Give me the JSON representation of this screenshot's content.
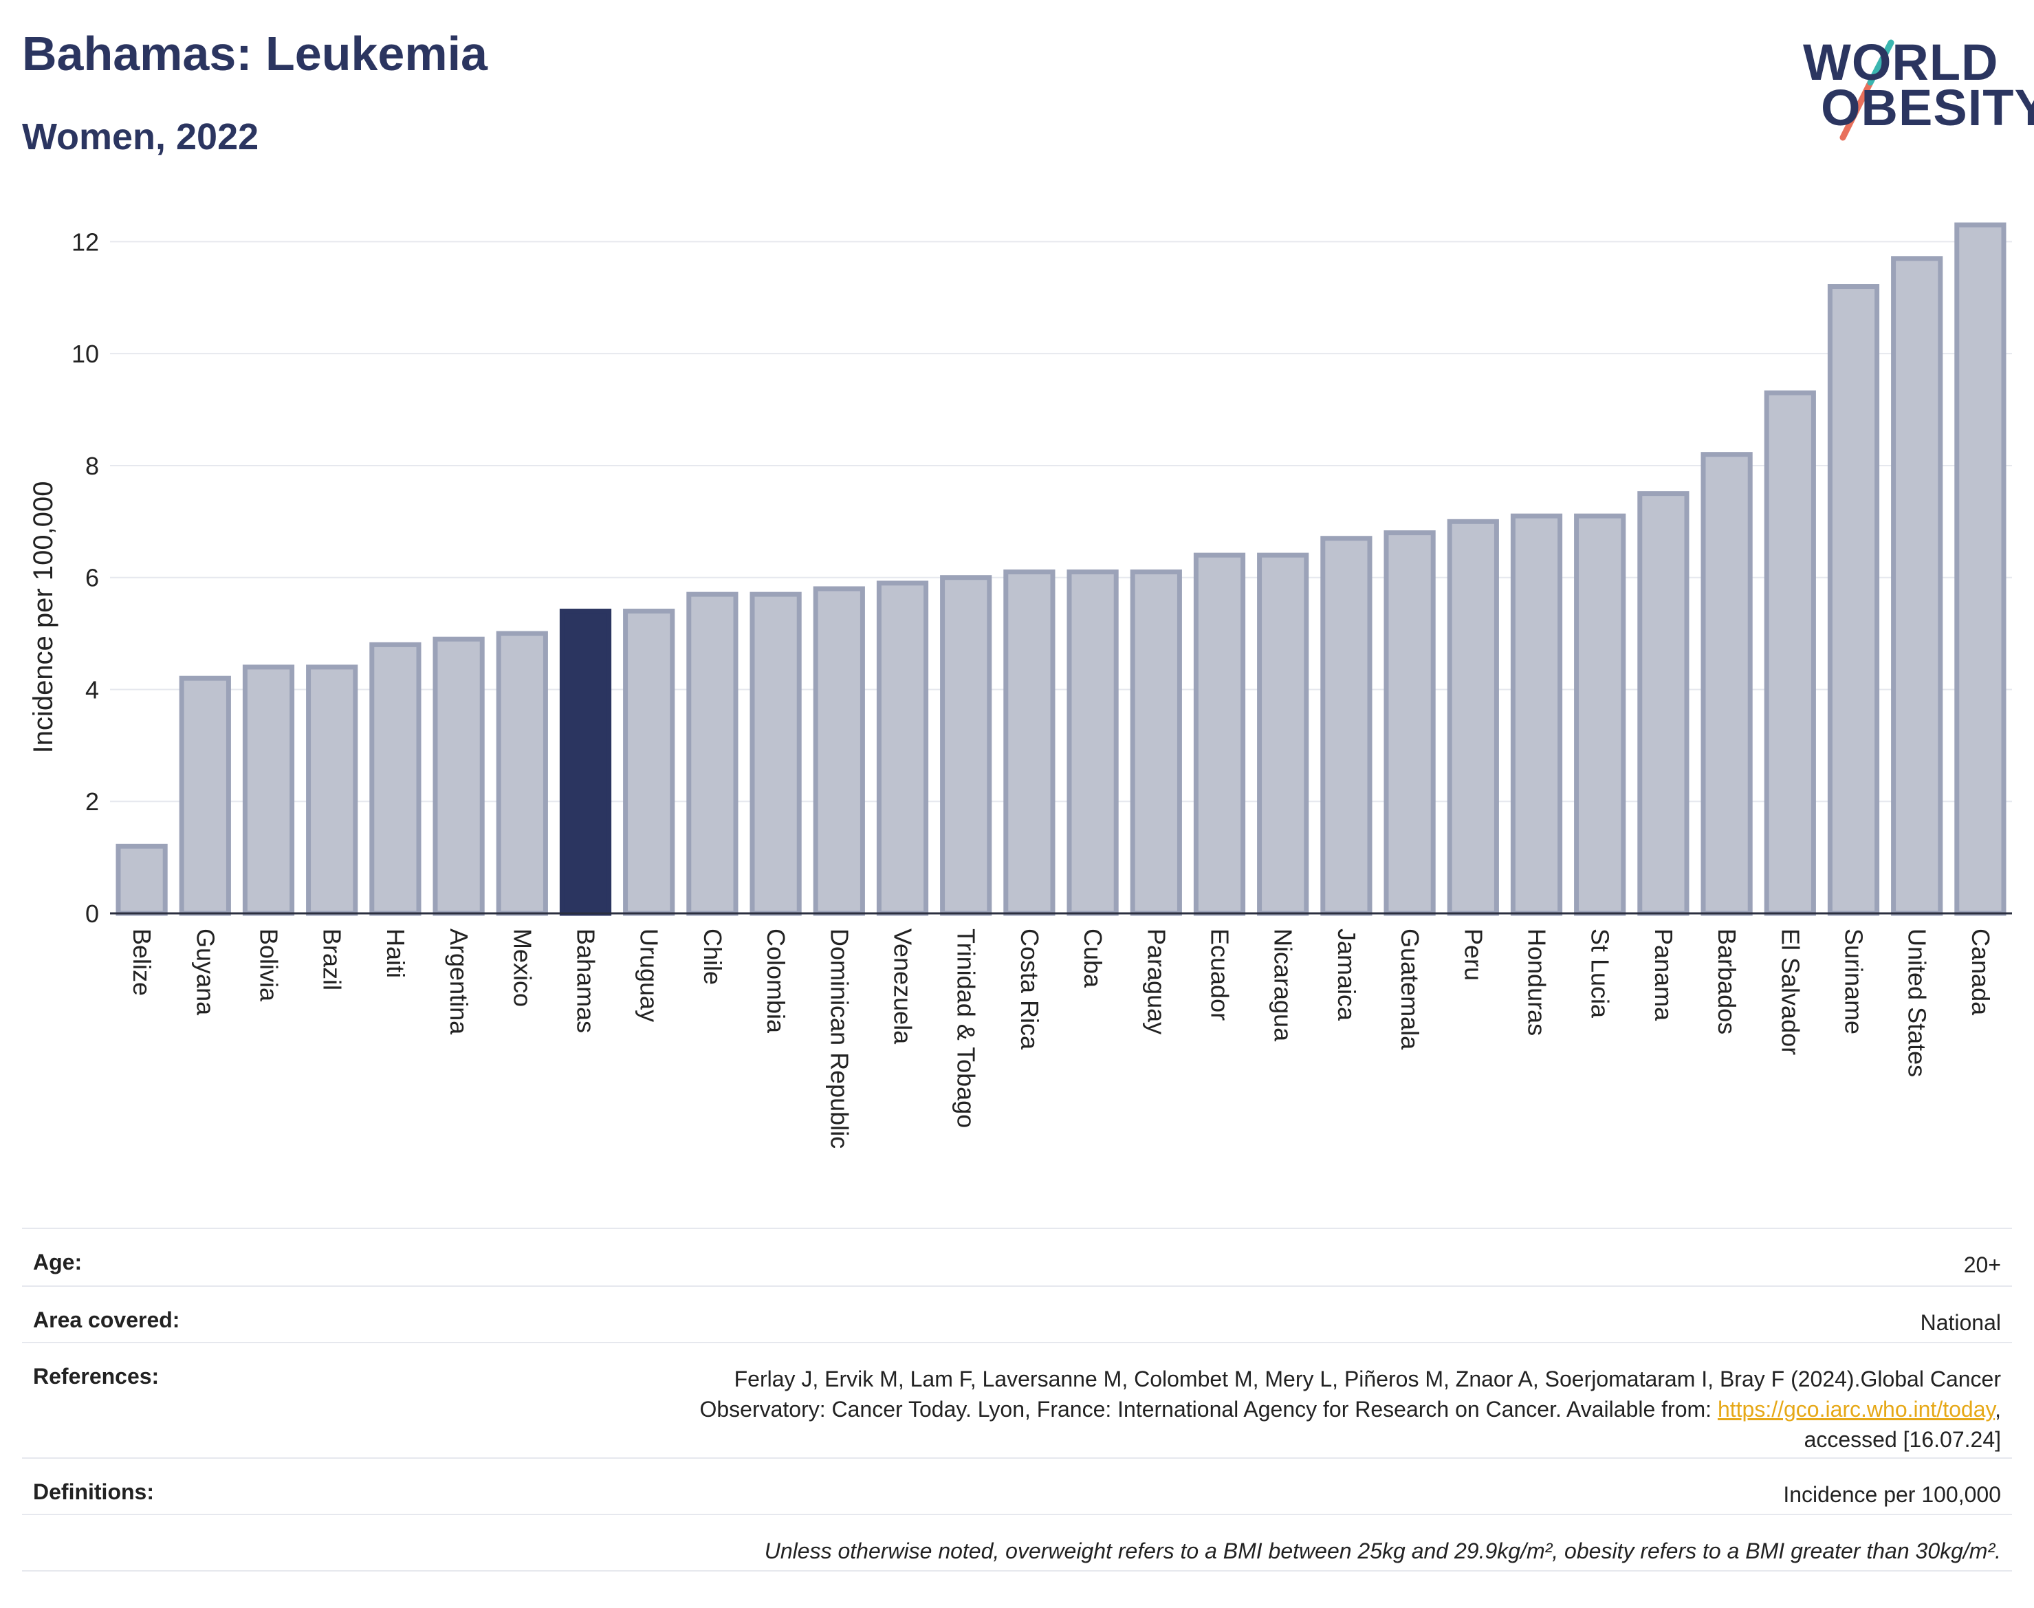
{
  "title": "Bahamas: Leukemia",
  "subtitle": "Women, 2022",
  "logo": {
    "line1": "WORLD",
    "line2": "OBESITY"
  },
  "colors": {
    "highlight": "#2b3560",
    "bar": "#bec2cf",
    "bar_border": "#9ba2b8",
    "title": "#2b3560",
    "link": "#e6a817"
  },
  "chart_data": {
    "type": "bar",
    "ylabel": "Incidence per 100,000",
    "ylim": [
      0,
      12.3
    ],
    "yticks": [
      0,
      2,
      4,
      6,
      8,
      10,
      12
    ],
    "grid": true,
    "highlight": "Bahamas",
    "categories": [
      "Belize",
      "Guyana",
      "Bolivia",
      "Brazil",
      "Haiti",
      "Argentina",
      "Mexico",
      "Bahamas",
      "Uruguay",
      "Chile",
      "Colombia",
      "Dominican Republic",
      "Venezuela",
      "Trinidad & Tobago",
      "Costa Rica",
      "Cuba",
      "Paraguay",
      "Ecuador",
      "Nicaragua",
      "Jamaica",
      "Guatemala",
      "Peru",
      "Honduras",
      "St Lucia",
      "Panama",
      "Barbados",
      "El Salvador",
      "Suriname",
      "United States",
      "Canada"
    ],
    "values": [
      1.2,
      4.2,
      4.4,
      4.4,
      4.8,
      4.9,
      5.0,
      5.4,
      5.4,
      5.7,
      5.7,
      5.8,
      5.9,
      6.0,
      6.1,
      6.1,
      6.1,
      6.4,
      6.4,
      6.7,
      6.8,
      7.0,
      7.1,
      7.1,
      7.5,
      8.2,
      9.3,
      11.2,
      11.7,
      12.3
    ]
  },
  "meta": {
    "age_label": "Age:",
    "age_value": "20+",
    "area_label": "Area covered:",
    "area_value": "National",
    "references_label": "References:",
    "references_line1": "Ferlay J, Ervik M, Lam F, Laversanne M, Colombet M, Mery L, Piñeros M, Znaor A, Soerjomataram I, Bray F (2024).Global Cancer",
    "references_line2_pre": "Observatory: Cancer Today. Lyon, France: International Agency for Research on Cancer. Available from: ",
    "references_link": "https://gco.iarc.who.int/today",
    "references_line2_post": ",",
    "references_line3": "accessed [16.07.24]",
    "definitions_label": "Definitions:",
    "definitions_value": "Incidence per 100,000",
    "note": "Unless otherwise noted, overweight refers to a BMI between 25kg and 29.9kg/m², obesity refers to a BMI greater than 30kg/m²."
  }
}
